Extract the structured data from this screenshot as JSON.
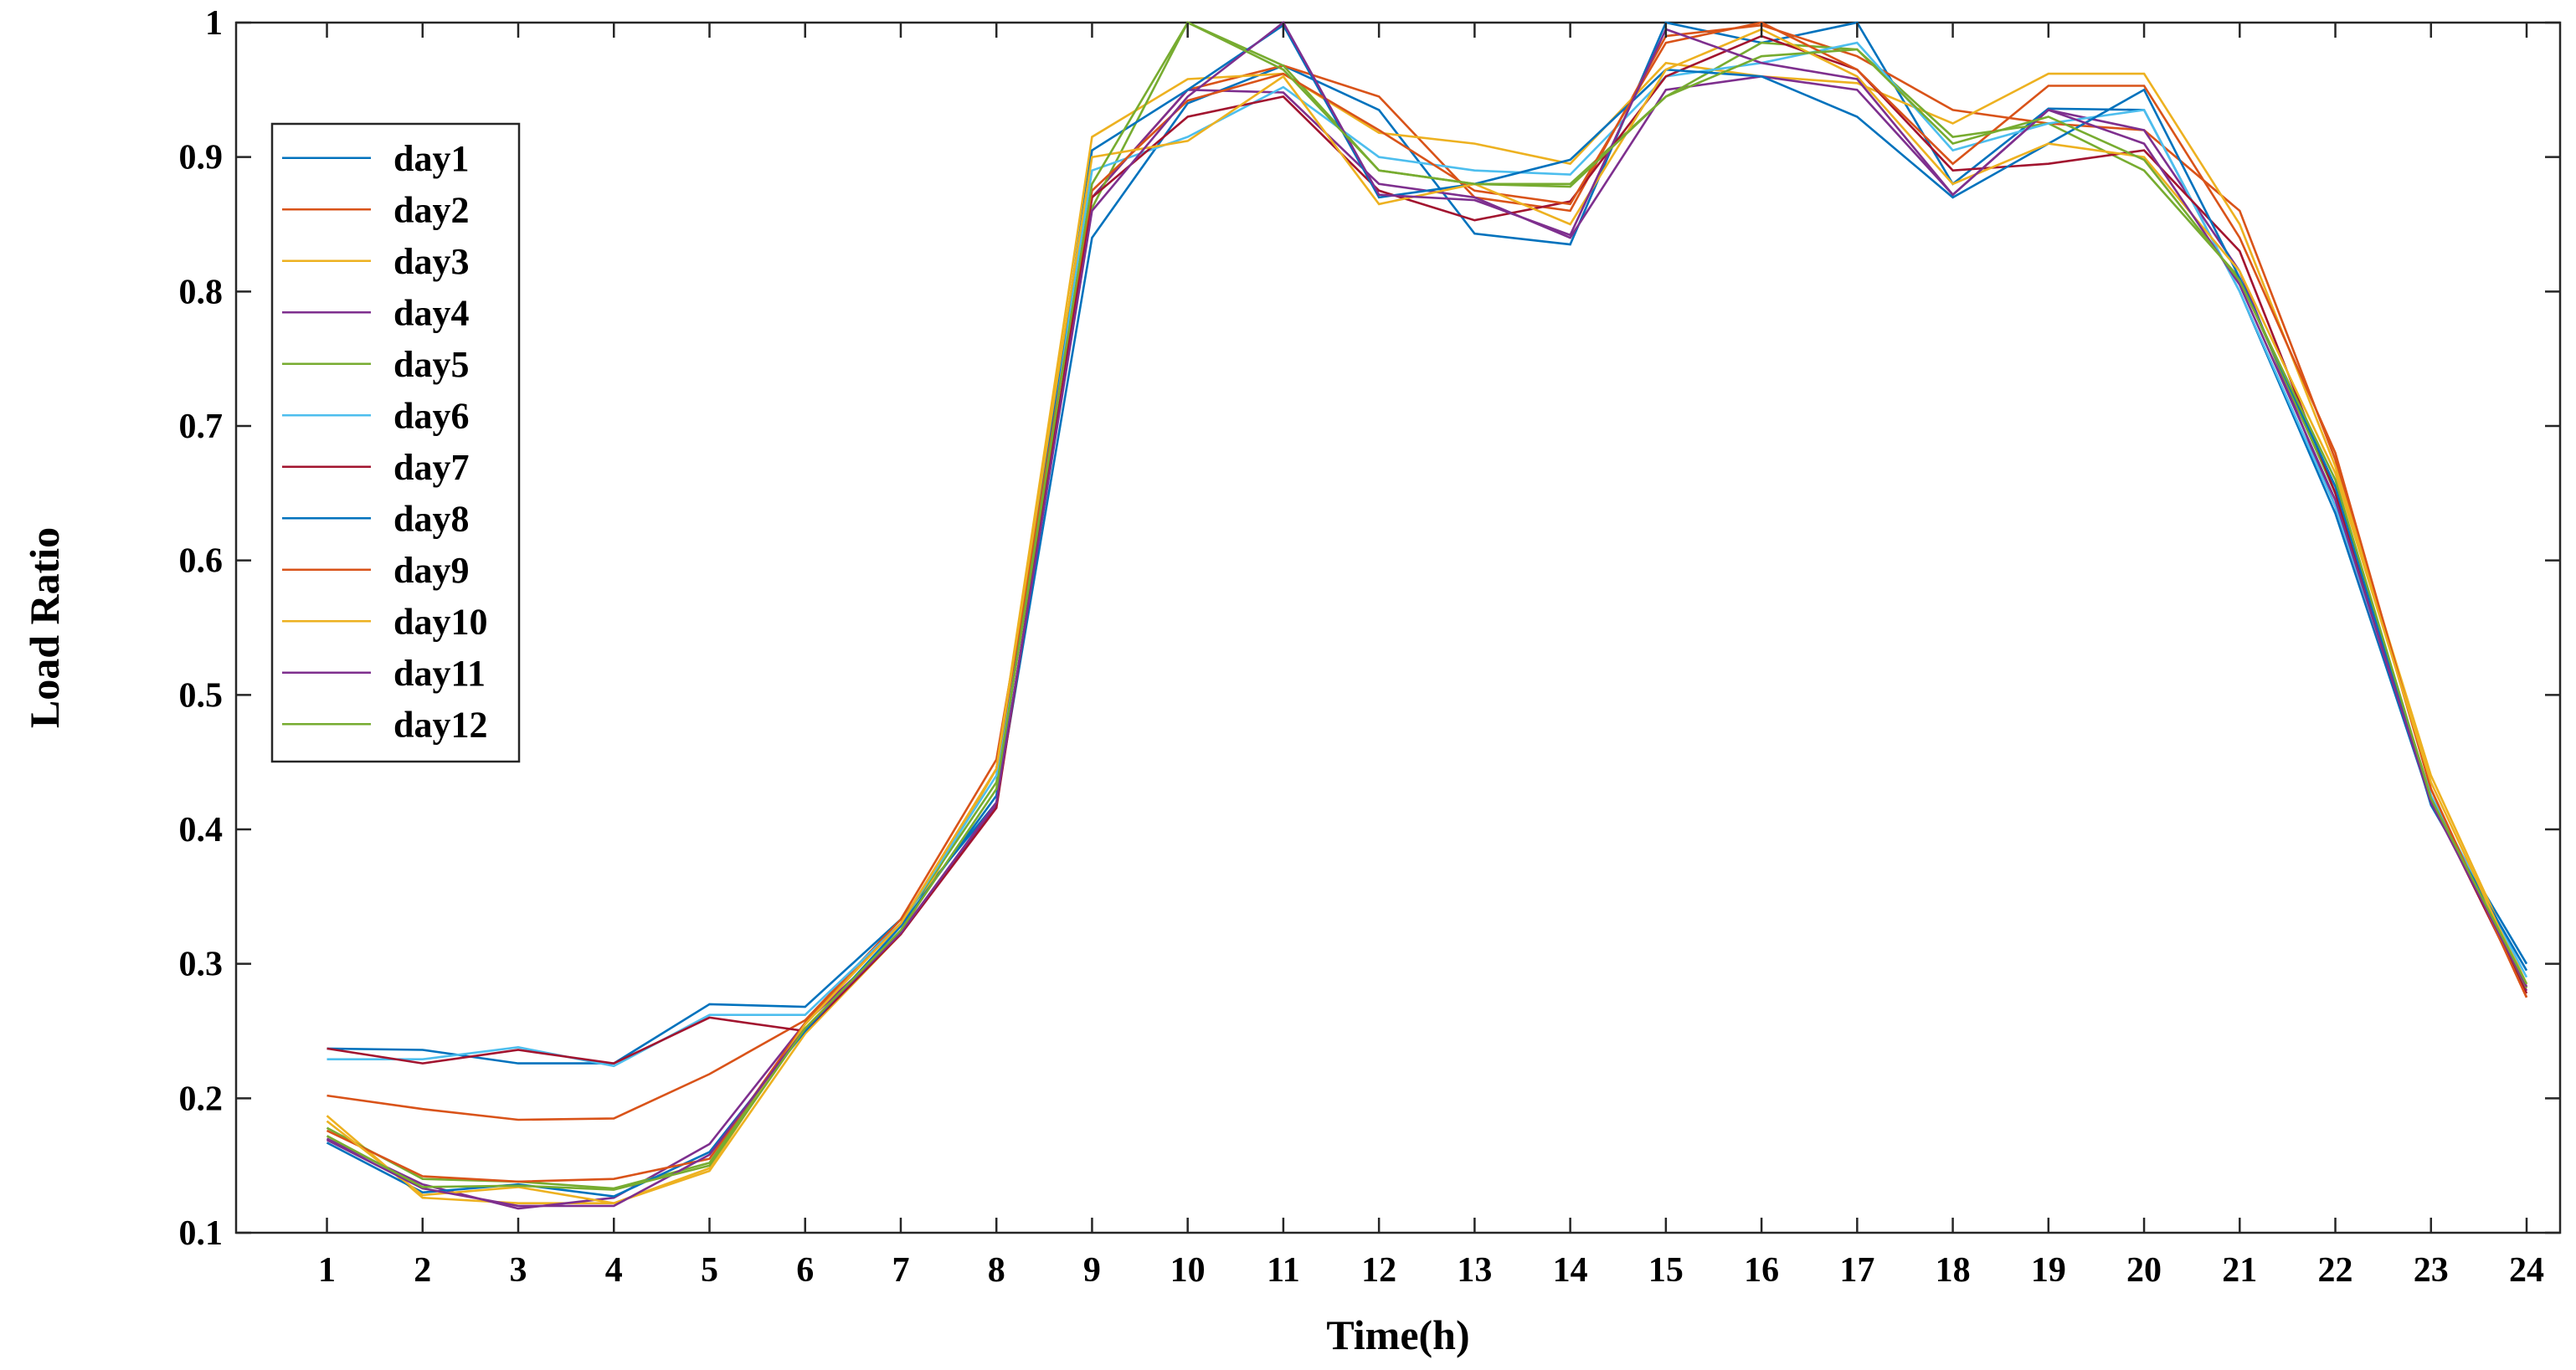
{
  "chart_data": {
    "type": "line",
    "xlabel": "Time(h)",
    "ylabel": "Load Ratio",
    "xlim": [
      0.05,
      24.35
    ],
    "ylim": [
      0.1,
      1.0
    ],
    "x": [
      1,
      2,
      3,
      4,
      5,
      6,
      7,
      8,
      9,
      10,
      11,
      12,
      13,
      14,
      15,
      16,
      17,
      18,
      19,
      20,
      21,
      22,
      23,
      24
    ],
    "x_tick_labels": [
      "1",
      "2",
      "3",
      "4",
      "5",
      "6",
      "7",
      "8",
      "9",
      "10",
      "11",
      "12",
      "13",
      "14",
      "15",
      "16",
      "17",
      "18",
      "19",
      "20",
      "21",
      "22",
      "23",
      "24"
    ],
    "y_ticks": [
      0.1,
      0.2,
      0.3,
      0.4,
      0.5,
      0.6,
      0.7,
      0.8,
      0.9,
      1.0
    ],
    "y_tick_labels": [
      "0.1",
      "0.2",
      "0.3",
      "0.4",
      "0.5",
      "0.6",
      "0.7",
      "0.8",
      "0.9",
      "1"
    ],
    "grid": false,
    "legend_position": "top-left",
    "series": [
      {
        "name": "day1",
        "color": "#0072BD",
        "values": [
          0.237,
          0.236,
          0.226,
          0.226,
          0.27,
          0.268,
          0.333,
          0.42,
          0.84,
          0.94,
          0.968,
          0.935,
          0.843,
          0.835,
          1.0,
          0.985,
          1.0,
          0.88,
          0.936,
          0.935,
          0.8,
          0.635,
          0.42,
          0.3
        ]
      },
      {
        "name": "day2",
        "color": "#D95319",
        "values": [
          0.202,
          0.192,
          0.184,
          0.185,
          0.218,
          0.258,
          0.333,
          0.452,
          0.87,
          0.95,
          0.968,
          0.945,
          0.87,
          0.86,
          0.99,
          0.998,
          0.975,
          0.935,
          0.925,
          0.92,
          0.86,
          0.675,
          0.43,
          0.275
        ]
      },
      {
        "name": "day3",
        "color": "#EDB120",
        "values": [
          0.187,
          0.126,
          0.122,
          0.122,
          0.146,
          0.248,
          0.322,
          0.445,
          0.915,
          0.958,
          0.962,
          0.918,
          0.91,
          0.895,
          0.97,
          0.96,
          0.955,
          0.925,
          0.962,
          0.962,
          0.85,
          0.67,
          0.44,
          0.285
        ]
      },
      {
        "name": "day4",
        "color": "#7E2F8E",
        "values": [
          0.17,
          0.136,
          0.118,
          0.126,
          0.166,
          0.256,
          0.322,
          0.418,
          0.87,
          0.95,
          0.948,
          0.88,
          0.87,
          0.84,
          0.95,
          0.96,
          0.95,
          0.872,
          0.935,
          0.92,
          0.815,
          0.64,
          0.422,
          0.28
        ]
      },
      {
        "name": "day5",
        "color": "#77AC30",
        "values": [
          0.178,
          0.14,
          0.138,
          0.133,
          0.152,
          0.256,
          0.33,
          0.435,
          0.862,
          1.0,
          0.968,
          0.89,
          0.88,
          0.88,
          0.945,
          0.985,
          0.98,
          0.915,
          0.925,
          0.89,
          0.81,
          0.65,
          0.425,
          0.282
        ]
      },
      {
        "name": "day6",
        "color": "#4DBEEE",
        "values": [
          0.229,
          0.229,
          0.238,
          0.224,
          0.262,
          0.262,
          0.33,
          0.44,
          0.89,
          0.915,
          0.952,
          0.9,
          0.89,
          0.887,
          0.96,
          0.97,
          0.985,
          0.905,
          0.925,
          0.935,
          0.8,
          0.64,
          0.425,
          0.29
        ]
      },
      {
        "name": "day7",
        "color": "#A2142F",
        "values": [
          0.237,
          0.226,
          0.236,
          0.226,
          0.26,
          0.25,
          0.322,
          0.416,
          0.87,
          0.93,
          0.945,
          0.875,
          0.853,
          0.867,
          0.96,
          0.99,
          0.965,
          0.89,
          0.895,
          0.905,
          0.83,
          0.65,
          0.422,
          0.278
        ]
      },
      {
        "name": "day8",
        "color": "#0072BD",
        "values": [
          0.167,
          0.13,
          0.136,
          0.127,
          0.16,
          0.25,
          0.328,
          0.425,
          0.905,
          0.95,
          0.998,
          0.87,
          0.88,
          0.898,
          0.965,
          0.96,
          0.93,
          0.87,
          0.91,
          0.95,
          0.81,
          0.655,
          0.418,
          0.295
        ]
      },
      {
        "name": "day9",
        "color": "#D95319",
        "values": [
          0.176,
          0.142,
          0.138,
          0.14,
          0.155,
          0.256,
          0.33,
          0.445,
          0.875,
          0.942,
          0.962,
          0.92,
          0.875,
          0.865,
          0.985,
          1.0,
          0.965,
          0.895,
          0.953,
          0.953,
          0.84,
          0.68,
          0.43,
          0.275
        ]
      },
      {
        "name": "day10",
        "color": "#EDB120",
        "values": [
          0.183,
          0.128,
          0.134,
          0.122,
          0.148,
          0.255,
          0.33,
          0.445,
          0.9,
          0.912,
          0.96,
          0.865,
          0.88,
          0.85,
          0.965,
          0.995,
          0.96,
          0.88,
          0.91,
          0.9,
          0.815,
          0.665,
          0.435,
          0.283
        ]
      },
      {
        "name": "day11",
        "color": "#7E2F8E",
        "values": [
          0.169,
          0.133,
          0.12,
          0.12,
          0.158,
          0.252,
          0.323,
          0.42,
          0.86,
          0.945,
          1.0,
          0.872,
          0.868,
          0.842,
          0.995,
          0.97,
          0.958,
          0.872,
          0.935,
          0.91,
          0.805,
          0.645,
          0.42,
          0.283
        ]
      },
      {
        "name": "day12",
        "color": "#77AC30",
        "values": [
          0.172,
          0.134,
          0.135,
          0.132,
          0.15,
          0.252,
          0.325,
          0.43,
          0.88,
          1.0,
          0.965,
          0.89,
          0.88,
          0.878,
          0.945,
          0.975,
          0.98,
          0.91,
          0.93,
          0.898,
          0.808,
          0.66,
          0.423,
          0.285
        ]
      }
    ]
  }
}
